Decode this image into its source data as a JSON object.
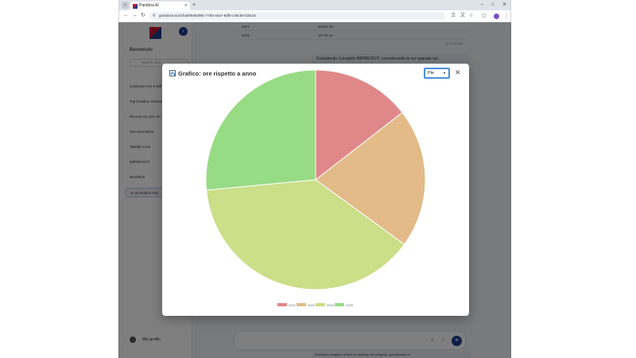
{
  "browser": {
    "tab_title": "Pandora AI",
    "url": "grandora-ai.it/chat/0946298c-7760-4ea7-9df0-c45c8e7d3416",
    "new_tab": "+",
    "minimize": "–",
    "maximize": "□",
    "close": "✕"
  },
  "sidebar": {
    "collapse_icon": "‹",
    "welcome": "Benvenuto",
    "search_placeholder": "Search chat",
    "items": [
      {
        "label": "Confronto Ore e Diff"
      },
      {
        "label": "Top 5 Nation Gennaio"
      },
      {
        "label": "Risorse con più ore"
      },
      {
        "label": "Ore consuntive"
      },
      {
        "label": "Tabella Costi"
      },
      {
        "label": "IMPREVISTI"
      },
      {
        "label": "WorkPlus"
      },
      {
        "label": "AI Innovation Day"
      }
    ],
    "profile_label": "Mio profilo"
  },
  "background": {
    "rows": [
      {
        "year": "2024",
        "value": "40461.98"
      },
      {
        "year": "2025",
        "value": "10739.18"
      }
    ],
    "time": "11:31:33 AM",
    "message": "Escludendo il progetto IMPREVISTI, considerando le ore spacate nel",
    "bottom_message": "Possiamo scegliere di fare un riepilogo del progetto, specificando la"
  },
  "modal": {
    "title": "Grafico: ore rispetto a anno",
    "chart_type": "Pie",
    "close_label": "✕"
  },
  "chart_data": {
    "type": "pie",
    "title": "Grafico: ore rispetto a anno",
    "legend_position": "bottom",
    "categories": [
      "2022",
      "2023",
      "2024",
      "2025"
    ],
    "values": [
      14.5,
      20.5,
      38.5,
      26.5
    ],
    "colors": [
      "#e08789",
      "#e2bb88",
      "#cbde88",
      "#98db85"
    ]
  }
}
